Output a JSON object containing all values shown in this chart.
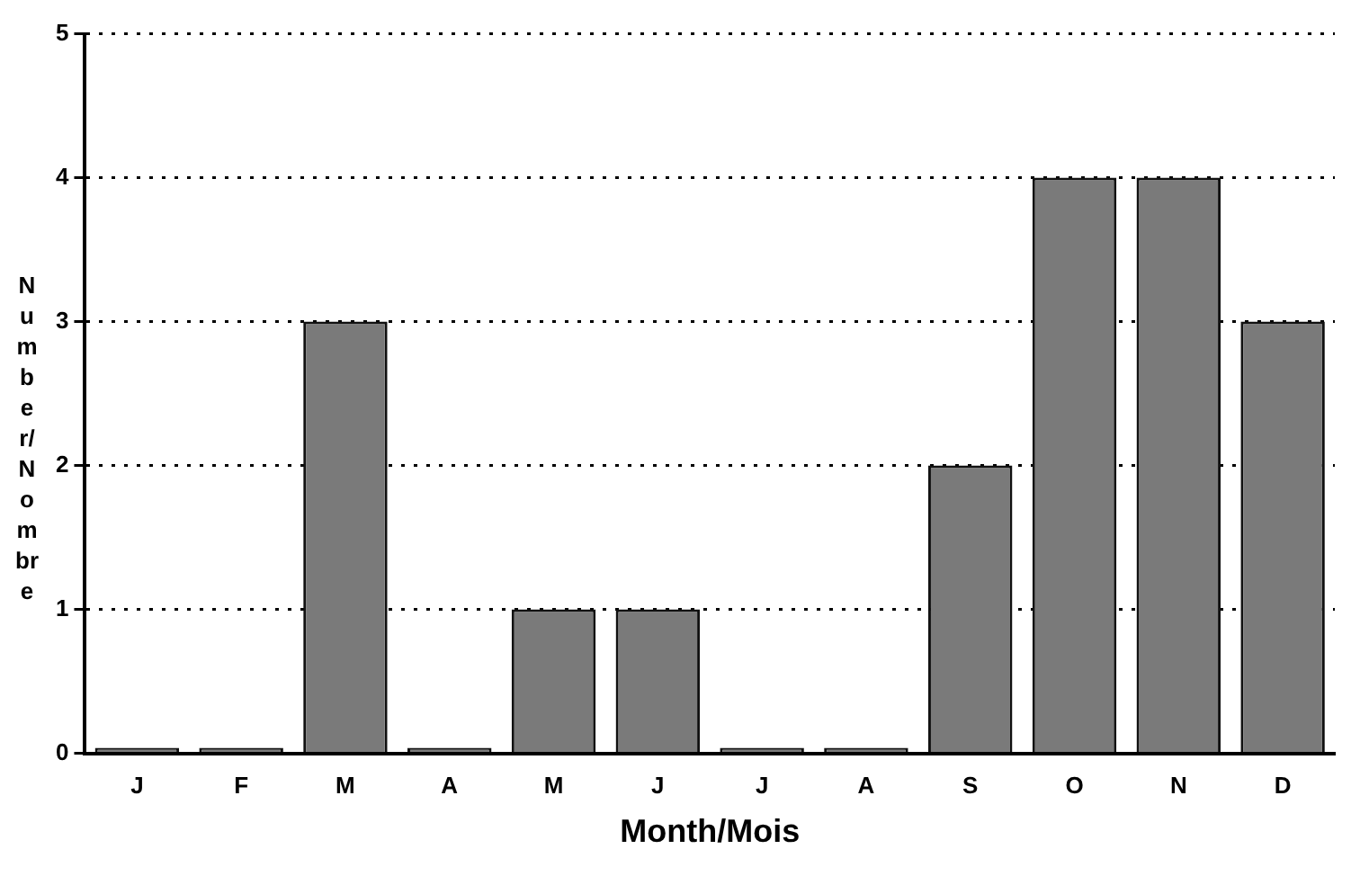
{
  "chart_data": {
    "type": "bar",
    "xlabel": "Month/Mois",
    "ylabel": "Number/Nombre",
    "categories": [
      "J",
      "F",
      "M",
      "A",
      "M",
      "J",
      "J",
      "A",
      "S",
      "O",
      "N",
      "D"
    ],
    "values": [
      0,
      0,
      3,
      0,
      1,
      1,
      0,
      0,
      2,
      4,
      4,
      3
    ],
    "color": "#7a7a7a",
    "ylim": [
      0,
      5
    ],
    "yticks": [
      0,
      1,
      2,
      3,
      4,
      5
    ],
    "grid": "y",
    "legend": false
  }
}
